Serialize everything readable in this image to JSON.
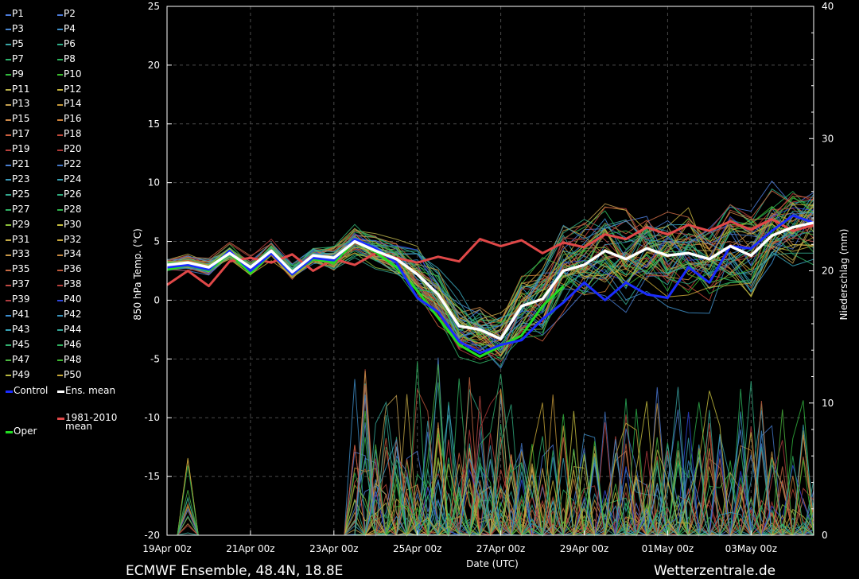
{
  "footer": {
    "left": "ECMWF Ensemble, 48.4N, 18.8E",
    "right": "Wetterzentrale.de"
  },
  "legend": [
    {
      "label": "P1",
      "color": "#4c7bd9"
    },
    {
      "label": "P2",
      "color": "#4c7bd9"
    },
    {
      "label": "P3",
      "color": "#4a86d0"
    },
    {
      "label": "P4",
      "color": "#3f8fc9"
    },
    {
      "label": "P5",
      "color": "#3aa6a6"
    },
    {
      "label": "P6",
      "color": "#2fae8a"
    },
    {
      "label": "P7",
      "color": "#2fb26d"
    },
    {
      "label": "P8",
      "color": "#2cb35c"
    },
    {
      "label": "P9",
      "color": "#32b83e"
    },
    {
      "label": "P10",
      "color": "#3bbb2e"
    },
    {
      "label": "P11",
      "color": "#b9b04a"
    },
    {
      "label": "P12",
      "color": "#c4b23c"
    },
    {
      "label": "P13",
      "color": "#c4a050"
    },
    {
      "label": "P14",
      "color": "#c89a3a"
    },
    {
      "label": "P15",
      "color": "#d08a4a"
    },
    {
      "label": "P16",
      "color": "#d0823a"
    },
    {
      "label": "P17",
      "color": "#cc6040"
    },
    {
      "label": "P18",
      "color": "#c24a3a"
    },
    {
      "label": "P19",
      "color": "#b8403c"
    },
    {
      "label": "P20",
      "color": "#b03a38"
    },
    {
      "label": "P21",
      "color": "#4a7fd0"
    },
    {
      "label": "P22",
      "color": "#4478c8"
    },
    {
      "label": "P23",
      "color": "#3c9ab8"
    },
    {
      "label": "P24",
      "color": "#38a0b0"
    },
    {
      "label": "P25",
      "color": "#34a890"
    },
    {
      "label": "P26",
      "color": "#30ac80"
    },
    {
      "label": "P27",
      "color": "#30b064"
    },
    {
      "label": "P28",
      "color": "#2eb24c"
    },
    {
      "label": "P29",
      "color": "#8cc03a"
    },
    {
      "label": "P30",
      "color": "#c8c040"
    },
    {
      "label": "P31",
      "color": "#c4aa46"
    },
    {
      "label": "P32",
      "color": "#c8a83c"
    },
    {
      "label": "P33",
      "color": "#c89848"
    },
    {
      "label": "P34",
      "color": "#c88a40"
    },
    {
      "label": "P35",
      "color": "#c86a44"
    },
    {
      "label": "P36",
      "color": "#c05a3c"
    },
    {
      "label": "P37",
      "color": "#c04a44"
    },
    {
      "label": "P38",
      "color": "#b8403c"
    },
    {
      "label": "P39",
      "color": "#b03c40"
    },
    {
      "label": "P40",
      "color": "#3048e0"
    },
    {
      "label": "P41",
      "color": "#3c8ed0"
    },
    {
      "label": "P42",
      "color": "#3a96c0"
    },
    {
      "label": "P43",
      "color": "#38a4b8"
    },
    {
      "label": "P44",
      "color": "#34a898"
    },
    {
      "label": "P45",
      "color": "#32b070"
    },
    {
      "label": "P46",
      "color": "#30b060"
    },
    {
      "label": "P47",
      "color": "#4cb840"
    },
    {
      "label": "P48",
      "color": "#3cb830"
    },
    {
      "label": "P49",
      "color": "#b8b840"
    },
    {
      "label": "P50",
      "color": "#c8a838"
    },
    {
      "label": "Control",
      "color": "#1a2cff"
    },
    {
      "label": "Ens. mean",
      "color": "#ffffff"
    },
    {
      "label": "1981-2010\nmean",
      "color": "#e04848"
    },
    {
      "label": "Oper",
      "color": "#22dd22"
    }
  ],
  "chart_data": {
    "type": "line",
    "xlabel": "Date (UTC)",
    "ylabel": "850 hPa Temp. (°C)",
    "y2label": "Niederschlag (mm)",
    "ylim": [
      -20,
      25
    ],
    "y2lim": [
      0,
      40
    ],
    "yticks": [
      "-20",
      "-15",
      "-10",
      "-5",
      "0",
      "5",
      "10",
      "15",
      "20",
      "25"
    ],
    "y2ticks": [
      "0",
      "10",
      "20",
      "30",
      "40"
    ],
    "xticks": [
      "19Apr 00z",
      "21Apr 00z",
      "23Apr 00z",
      "25Apr 00z",
      "27Apr 00z",
      "29Apr 00z",
      "01May 00z",
      "03May 00z"
    ],
    "x_days": [
      0,
      15.5
    ],
    "grid": true,
    "series": [
      {
        "name": "1981-2010 mean",
        "color": "#e04848",
        "width": 3,
        "x": [
          0,
          0.5,
          1,
          1.5,
          2,
          2.5,
          3,
          3.5,
          4,
          4.5,
          5,
          5.5,
          6,
          6.5,
          7,
          7.5,
          8,
          8.5,
          9,
          9.5,
          10,
          10.5,
          11,
          11.5,
          12,
          12.5,
          13,
          13.5,
          14,
          14.5,
          15,
          15.5
        ],
        "values": [
          1.3,
          2.5,
          1.2,
          3.3,
          3.6,
          3.2,
          3.9,
          2.5,
          3.5,
          3.0,
          4.0,
          3.6,
          3.2,
          3.7,
          3.3,
          5.2,
          4.6,
          5.1,
          4.0,
          4.9,
          4.5,
          5.6,
          5.2,
          6.2,
          5.6,
          6.4,
          5.9,
          6.7,
          6.0,
          6.9,
          5.9,
          6.4
        ]
      },
      {
        "name": "Ens. mean",
        "color": "#ffffff",
        "width": 3.5,
        "x": [
          0,
          0.5,
          1,
          1.5,
          2,
          2.5,
          3,
          3.5,
          4,
          4.5,
          5,
          5.5,
          6,
          6.5,
          7,
          7.5,
          8,
          8.5,
          9,
          9.5,
          10,
          10.5,
          11,
          11.5,
          12,
          12.5,
          13,
          13.5,
          14,
          14.5,
          15,
          15.5
        ],
        "values": [
          3.0,
          3.2,
          2.8,
          4.0,
          2.8,
          4.2,
          2.4,
          3.8,
          3.6,
          5.0,
          4.2,
          3.5,
          2.2,
          0.5,
          -2.2,
          -2.5,
          -3.3,
          -0.5,
          0.1,
          2.5,
          3.0,
          4.2,
          3.5,
          4.4,
          3.8,
          4.0,
          3.5,
          4.6,
          3.8,
          5.5,
          6.2,
          6.6
        ]
      },
      {
        "name": "Control",
        "color": "#1a2cff",
        "width": 3,
        "x": [
          0,
          0.5,
          1,
          1.5,
          2,
          2.5,
          3,
          3.5,
          4,
          4.5,
          5,
          5.5,
          6,
          6.5,
          7,
          7.5,
          8,
          8.5,
          9,
          9.5,
          10,
          10.5,
          11,
          11.5,
          12,
          12.5,
          13,
          13.5,
          14,
          14.5,
          15,
          15.5
        ],
        "values": [
          2.8,
          3.0,
          2.6,
          4.2,
          2.5,
          4.0,
          2.2,
          3.6,
          3.4,
          5.2,
          4.4,
          3.2,
          0.2,
          -1.0,
          -3.5,
          -4.5,
          -3.8,
          -3.4,
          -1.6,
          -0.2,
          1.5,
          0.0,
          1.5,
          0.5,
          0.2,
          2.8,
          1.5,
          4.6,
          4.4,
          5.9,
          7.2,
          6.6
        ]
      },
      {
        "name": "Oper",
        "color": "#22dd22",
        "width": 3,
        "x": [
          0,
          0.5,
          1,
          1.5,
          2,
          2.5,
          3,
          3.5,
          4,
          4.5,
          5,
          5.5,
          6,
          6.5,
          7,
          7.5,
          8,
          8.5,
          9,
          9.5
        ],
        "values": [
          2.6,
          3.0,
          2.5,
          4.0,
          2.3,
          4.0,
          2.2,
          3.5,
          3.2,
          5.0,
          4.1,
          2.8,
          0.8,
          -1.5,
          -3.8,
          -4.8,
          -3.9,
          -3.0,
          -0.5,
          1.2
        ]
      }
    ]
  }
}
